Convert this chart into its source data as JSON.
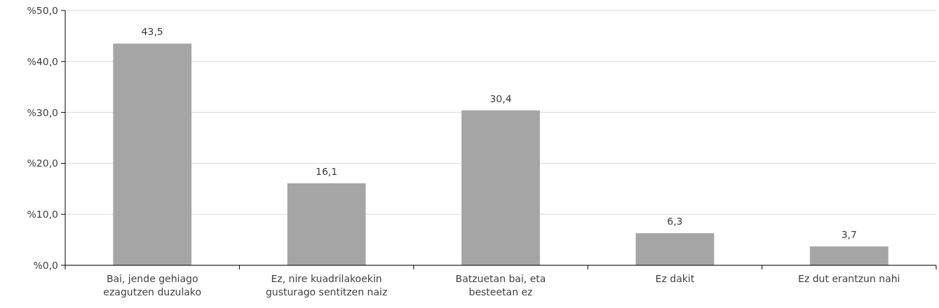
{
  "chart_data": {
    "type": "bar",
    "categories": [
      "Bai, jende gehiago ezagutzen duzulako",
      "Ez, nire kuadrilakoekin gusturago sentitzen naiz",
      "Batzuetan bai, eta besteetan ez",
      "Ez dakit",
      "Ez dut erantzun nahi"
    ],
    "values": [
      43.5,
      16.1,
      30.4,
      6.3,
      3.7
    ],
    "value_labels": [
      "43,5",
      "16,1",
      "30,4",
      "6,3",
      "3,7"
    ],
    "color": "#a5a5a5",
    "ylim": [
      0,
      50
    ],
    "yticks": [
      {
        "value": 0,
        "label": "%0,0"
      },
      {
        "value": 10,
        "label": "%10,0"
      },
      {
        "value": 20,
        "label": "%20,0"
      },
      {
        "value": 30,
        "label": "%30,0"
      },
      {
        "value": 40,
        "label": "%40,0"
      },
      {
        "value": 50,
        "label": "%50,0"
      }
    ],
    "grid": "y"
  }
}
